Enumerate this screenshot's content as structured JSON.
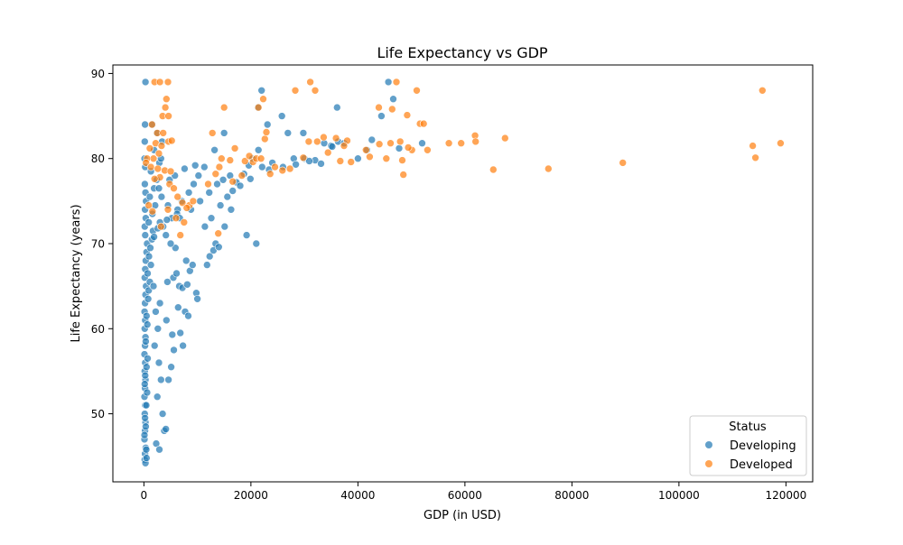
{
  "chart_data": {
    "type": "scatter",
    "title": "Life Expectancy vs GDP",
    "xlabel": "GDP (in USD)",
    "ylabel": "Life Expectancy (years)",
    "xlim": [
      -5800,
      125000
    ],
    "ylim": [
      42,
      91
    ],
    "xticks": [
      0,
      20000,
      40000,
      60000,
      80000,
      100000,
      120000
    ],
    "yticks": [
      50,
      60,
      70,
      80,
      90
    ],
    "grid": false,
    "legend": {
      "title": "Status",
      "placement": "lower-right",
      "entries": [
        "Developing",
        "Developed"
      ]
    },
    "series": [
      {
        "name": "Developing",
        "color": "#1f77b4",
        "points": [
          [
            300,
            89
          ],
          [
            200,
            84
          ],
          [
            150,
            82
          ],
          [
            120,
            80
          ],
          [
            250,
            79
          ],
          [
            180,
            77
          ],
          [
            300,
            76
          ],
          [
            400,
            75
          ],
          [
            200,
            74
          ],
          [
            350,
            73
          ],
          [
            150,
            72
          ],
          [
            250,
            71
          ],
          [
            600,
            70
          ],
          [
            500,
            69
          ],
          [
            350,
            68
          ],
          [
            250,
            67
          ],
          [
            150,
            66
          ],
          [
            400,
            65
          ],
          [
            300,
            64
          ],
          [
            200,
            63
          ],
          [
            120,
            62
          ],
          [
            250,
            61
          ],
          [
            150,
            60
          ],
          [
            300,
            59
          ],
          [
            200,
            58
          ],
          [
            100,
            57
          ],
          [
            250,
            56
          ],
          [
            150,
            55
          ],
          [
            300,
            54
          ],
          [
            200,
            53
          ],
          [
            100,
            52
          ],
          [
            250,
            51
          ],
          [
            150,
            50
          ],
          [
            300,
            49
          ],
          [
            200,
            48
          ],
          [
            100,
            47
          ],
          [
            350,
            46
          ],
          [
            200,
            45.3
          ],
          [
            150,
            44.6
          ],
          [
            300,
            44.2
          ],
          [
            500,
            44.8
          ],
          [
            450,
            45.8
          ],
          [
            100,
            47.5
          ],
          [
            350,
            48.5
          ],
          [
            200,
            49.5
          ],
          [
            450,
            51
          ],
          [
            600,
            52.5
          ],
          [
            150,
            53.5
          ],
          [
            250,
            54.5
          ],
          [
            500,
            55.5
          ],
          [
            700,
            56.5
          ],
          [
            350,
            58.5
          ],
          [
            650,
            60.5
          ],
          [
            500,
            61.5
          ],
          [
            800,
            63.5
          ],
          [
            900,
            64.5
          ],
          [
            1100,
            65.5
          ],
          [
            700,
            66.5
          ],
          [
            1300,
            67.5
          ],
          [
            950,
            68.5
          ],
          [
            1200,
            69.5
          ],
          [
            1500,
            70.5
          ],
          [
            1700,
            71.5
          ],
          [
            900,
            72.5
          ],
          [
            1600,
            73.5
          ],
          [
            2100,
            74.5
          ],
          [
            1100,
            75.5
          ],
          [
            1900,
            76.5
          ],
          [
            2400,
            77.5
          ],
          [
            1300,
            78.5
          ],
          [
            2900,
            79.5
          ],
          [
            3200,
            80
          ],
          [
            1900,
            81
          ],
          [
            3400,
            82
          ],
          [
            2400,
            83
          ],
          [
            1600,
            84
          ],
          [
            1800,
            65
          ],
          [
            2200,
            62
          ],
          [
            2600,
            60
          ],
          [
            2000,
            58
          ],
          [
            2800,
            56
          ],
          [
            3200,
            54
          ],
          [
            2500,
            52
          ],
          [
            3500,
            50
          ],
          [
            3800,
            48
          ],
          [
            2300,
            46.5
          ],
          [
            2900,
            45.8
          ],
          [
            4100,
            48.2
          ],
          [
            4600,
            54
          ],
          [
            5100,
            55.5
          ],
          [
            5600,
            57.5
          ],
          [
            5300,
            59.3
          ],
          [
            4200,
            61
          ],
          [
            3000,
            63
          ],
          [
            4400,
            65.5
          ],
          [
            5500,
            66
          ],
          [
            6100,
            66.5
          ],
          [
            6600,
            65
          ],
          [
            7200,
            64.8
          ],
          [
            6400,
            62.5
          ],
          [
            7700,
            62
          ],
          [
            8300,
            61.5
          ],
          [
            6800,
            59.5
          ],
          [
            7300,
            58
          ],
          [
            8100,
            65.2
          ],
          [
            8600,
            66.8
          ],
          [
            9100,
            67.5
          ],
          [
            9800,
            64.2
          ],
          [
            10000,
            63.5
          ],
          [
            7900,
            68
          ],
          [
            5900,
            69.5
          ],
          [
            5000,
            70
          ],
          [
            4100,
            71
          ],
          [
            3600,
            72
          ],
          [
            5200,
            73
          ],
          [
            6300,
            74
          ],
          [
            7100,
            75
          ],
          [
            8400,
            76
          ],
          [
            9300,
            77
          ],
          [
            10200,
            78
          ],
          [
            11300,
            79
          ],
          [
            6200,
            73.5
          ],
          [
            4500,
            74.5
          ],
          [
            3300,
            75.5
          ],
          [
            2800,
            76.5
          ],
          [
            4800,
            77.5
          ],
          [
            5800,
            78
          ],
          [
            7600,
            78.8
          ],
          [
            9600,
            79.2
          ],
          [
            3000,
            72.5
          ],
          [
            2600,
            71.8
          ],
          [
            1900,
            70.8
          ],
          [
            4300,
            72.8
          ],
          [
            6700,
            73
          ],
          [
            8800,
            74
          ],
          [
            10500,
            75
          ],
          [
            12200,
            76
          ],
          [
            13700,
            77
          ],
          [
            11400,
            72
          ],
          [
            12600,
            73
          ],
          [
            14300,
            74.5
          ],
          [
            15600,
            75.5
          ],
          [
            16300,
            74
          ],
          [
            15100,
            72
          ],
          [
            13400,
            70
          ],
          [
            12300,
            68.5
          ],
          [
            11800,
            67.5
          ],
          [
            13000,
            69.2
          ],
          [
            14000,
            69.6
          ],
          [
            16600,
            76.2
          ],
          [
            17300,
            77.2
          ],
          [
            18700,
            78.2
          ],
          [
            19600,
            79.2
          ],
          [
            20300,
            80
          ],
          [
            21400,
            81
          ],
          [
            22100,
            79
          ],
          [
            24000,
            79.5
          ],
          [
            26000,
            79
          ],
          [
            28000,
            80
          ],
          [
            30000,
            80
          ],
          [
            32000,
            79.8
          ],
          [
            33700,
            81.8
          ],
          [
            35000,
            81.5
          ],
          [
            36300,
            82
          ],
          [
            37400,
            81.8
          ],
          [
            41700,
            81
          ],
          [
            42600,
            82.2
          ],
          [
            44400,
            85
          ],
          [
            45700,
            89
          ],
          [
            46600,
            87
          ],
          [
            36100,
            86
          ],
          [
            29800,
            83
          ],
          [
            26900,
            83
          ],
          [
            25800,
            85
          ],
          [
            23100,
            84
          ],
          [
            22000,
            88
          ],
          [
            21300,
            86
          ],
          [
            21000,
            70
          ],
          [
            19200,
            71
          ],
          [
            15000,
            83
          ],
          [
            13200,
            81
          ],
          [
            16100,
            78
          ],
          [
            14800,
            77.5
          ],
          [
            18000,
            76.8
          ],
          [
            19900,
            77.6
          ],
          [
            23400,
            78.7
          ],
          [
            28400,
            79.3
          ],
          [
            30900,
            79.7
          ],
          [
            33100,
            79.4
          ],
          [
            35200,
            81.4
          ],
          [
            40000,
            80
          ],
          [
            47700,
            81.2
          ],
          [
            52000,
            81.8
          ]
        ]
      },
      {
        "name": "Developed",
        "color": "#ff7f0e",
        "points": [
          [
            2000,
            89
          ],
          [
            3000,
            89
          ],
          [
            4500,
            89
          ],
          [
            4200,
            87
          ],
          [
            4000,
            86
          ],
          [
            3500,
            85
          ],
          [
            4600,
            85
          ],
          [
            1500,
            84
          ],
          [
            2500,
            83
          ],
          [
            3600,
            83
          ],
          [
            4600,
            82
          ],
          [
            2200,
            81.8
          ],
          [
            3300,
            81.5
          ],
          [
            5200,
            82.1
          ],
          [
            1100,
            81.2
          ],
          [
            2800,
            80.6
          ],
          [
            1800,
            80
          ],
          [
            600,
            80
          ],
          [
            400,
            79.5
          ],
          [
            1300,
            79
          ],
          [
            2600,
            78.8
          ],
          [
            3900,
            78.6
          ],
          [
            5000,
            78.5
          ],
          [
            3000,
            77.8
          ],
          [
            2000,
            77.6
          ],
          [
            4800,
            77
          ],
          [
            5600,
            76.5
          ],
          [
            6300,
            75.5
          ],
          [
            7200,
            74.8
          ],
          [
            8500,
            74.5
          ],
          [
            9200,
            75
          ],
          [
            4500,
            74
          ],
          [
            6000,
            73
          ],
          [
            7500,
            72.5
          ],
          [
            8000,
            74.2
          ],
          [
            900,
            74.5
          ],
          [
            1600,
            73.8
          ],
          [
            3200,
            72
          ],
          [
            6800,
            71
          ],
          [
            12000,
            77
          ],
          [
            13400,
            78.2
          ],
          [
            14100,
            79
          ],
          [
            15000,
            86
          ],
          [
            16100,
            79.8
          ],
          [
            17000,
            81.2
          ],
          [
            18900,
            79.7
          ],
          [
            20400,
            79.6
          ],
          [
            21000,
            80
          ],
          [
            21900,
            80
          ],
          [
            22600,
            82.3
          ],
          [
            22900,
            83.1
          ],
          [
            23600,
            78.2
          ],
          [
            24500,
            79
          ],
          [
            25900,
            78.6
          ],
          [
            27300,
            78.8
          ],
          [
            28300,
            88
          ],
          [
            29800,
            80.1
          ],
          [
            31100,
            89
          ],
          [
            32000,
            88
          ],
          [
            32400,
            82
          ],
          [
            33600,
            82.5
          ],
          [
            34400,
            80.7
          ],
          [
            35900,
            82.4
          ],
          [
            36700,
            79.7
          ],
          [
            38000,
            82.1
          ],
          [
            38700,
            79.6
          ],
          [
            41500,
            81
          ],
          [
            42200,
            80.2
          ],
          [
            45300,
            80
          ],
          [
            46100,
            81.8
          ],
          [
            47200,
            89
          ],
          [
            47900,
            82
          ],
          [
            48300,
            79.8
          ],
          [
            49200,
            85.1
          ],
          [
            50100,
            81
          ],
          [
            51000,
            88
          ],
          [
            51600,
            84.1
          ],
          [
            52300,
            84.1
          ],
          [
            48500,
            78.1
          ],
          [
            57000,
            81.8
          ],
          [
            59300,
            81.8
          ],
          [
            61900,
            82.7
          ],
          [
            62000,
            82
          ],
          [
            65300,
            78.7
          ],
          [
            67500,
            82.4
          ],
          [
            75600,
            78.8
          ],
          [
            89500,
            79.5
          ],
          [
            113800,
            81.5
          ],
          [
            114300,
            80.1
          ],
          [
            115600,
            88
          ],
          [
            119000,
            81.8
          ],
          [
            12800,
            83
          ],
          [
            14500,
            80
          ],
          [
            16600,
            77.3
          ],
          [
            13900,
            71.2
          ],
          [
            18300,
            78
          ],
          [
            19700,
            80.3
          ],
          [
            21400,
            86
          ],
          [
            22300,
            87
          ],
          [
            30800,
            82
          ],
          [
            37400,
            81.5
          ],
          [
            43900,
            86
          ],
          [
            46400,
            85.8
          ],
          [
            53000,
            81
          ],
          [
            49400,
            81.3
          ],
          [
            44000,
            81.7
          ]
        ]
      }
    ]
  }
}
